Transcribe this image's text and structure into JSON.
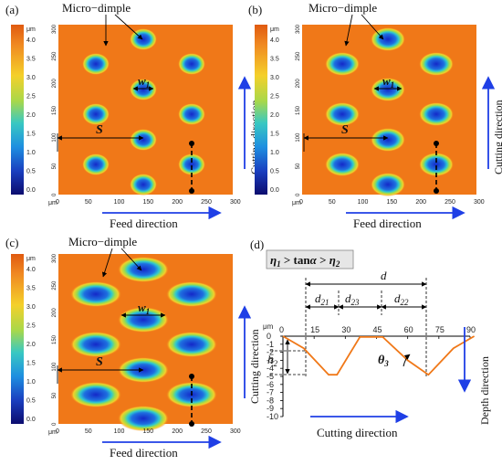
{
  "panels": {
    "a": {
      "label": "(a)",
      "dimple": "Micro−dimple",
      "w": "w",
      "w_sub": "1",
      "s": "S",
      "feed": "Feed direction",
      "cutting": "Cutting direction"
    },
    "b": {
      "label": "(b)",
      "dimple": "Micro−dimple",
      "w": "w",
      "w_sub": "1",
      "s": "S",
      "feed": "Feed direction",
      "cutting": "Cutting direction"
    },
    "c": {
      "label": "(c)",
      "dimple": "Micro−dimple",
      "w": "w",
      "w_sub": "1",
      "s": "S",
      "feed": "Feed direction",
      "cutting": "Cutting direction"
    },
    "d": {
      "label": "(d)",
      "eq_eta1": "η",
      "eq_sub1": "1",
      "eq_mid": " > tan",
      "eq_alpha": "α",
      "eq_gt": " > ",
      "eq_eta2": "η",
      "eq_sub2": "2",
      "d": "d",
      "d21": "d",
      "d21_sub": "21",
      "d23": "d",
      "d23_sub": "23",
      "d22": "d",
      "d22_sub": "22",
      "h2": "h",
      "h2_sub": "2",
      "theta": "θ",
      "theta_sub": "3",
      "unit": "μm",
      "depth": "Depth direction",
      "cutting": "Cutting direction"
    }
  },
  "colorbar": {
    "unit": "μm",
    "ticks": [
      "4.0",
      "3.5",
      "3.0",
      "2.5",
      "2.0",
      "1.5",
      "1.0",
      "0.5",
      "0.0"
    ],
    "colors": [
      "#e05a10",
      "#f08a22",
      "#f4d02a",
      "#a8d84a",
      "#39c8c2",
      "#1e8fe0",
      "#1a3fc0",
      "#0c0c6e"
    ]
  },
  "map_axis": {
    "unit": "μm",
    "x_ticks": [
      "0",
      "50",
      "100",
      "150",
      "200",
      "250",
      "300"
    ],
    "y_ticks": [
      "300",
      "250",
      "200",
      "150",
      "100",
      "50",
      "0"
    ]
  },
  "chart_data": {
    "type": "line",
    "x_unit": "μm",
    "x_ticks": [
      0,
      15,
      30,
      45,
      60,
      75,
      90
    ],
    "y_ticks": [
      0,
      -1,
      -2,
      -3,
      -4,
      -5,
      -6,
      -7,
      -8,
      -9,
      -10
    ],
    "xlim": [
      0,
      90
    ],
    "ylim": [
      -10,
      0
    ],
    "series": [
      {
        "values_x": [
          0,
          10,
          22,
          26,
          37,
          48,
          60,
          70,
          82,
          92
        ],
        "values_y": [
          0,
          -1.5,
          -4.8,
          -4.8,
          -0.1,
          -0.1,
          -3.0,
          -4.8,
          -1.5,
          0
        ]
      }
    ]
  },
  "colors": {
    "orange": "#f07818",
    "arrow_blue": "#1f3fe6",
    "dimple_blue": "#1a2fd8"
  }
}
